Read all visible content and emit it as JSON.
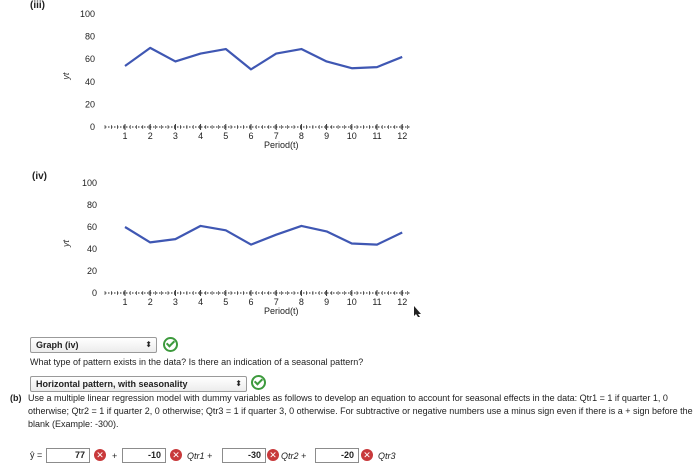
{
  "labels": {
    "part_iii": "(iii)",
    "part_iv": "(iv)"
  },
  "charts": {
    "xlabel": "Period(t)",
    "ylabel": "yt"
  },
  "chart_data": [
    {
      "type": "line",
      "name": "(iii)",
      "x": [
        1,
        2,
        3,
        4,
        5,
        6,
        7,
        8,
        9,
        10,
        11,
        12
      ],
      "y": [
        null,
        null,
        null,
        null,
        null,
        null,
        null,
        null,
        null,
        null,
        null,
        null
      ],
      "series": [
        {
          "x": [
            2,
            3,
            4,
            5,
            6,
            7,
            8,
            9,
            10,
            11,
            12
          ],
          "values": [
            null,
            null,
            null,
            null,
            null,
            null,
            null,
            null,
            null,
            null,
            null
          ]
        }
      ],
      "points": [
        [
          1,
          54
        ],
        [
          2,
          70
        ],
        [
          3,
          58
        ],
        [
          4,
          65
        ],
        [
          5,
          69
        ],
        [
          6,
          51
        ],
        [
          7,
          65
        ],
        [
          8,
          69
        ],
        [
          9,
          58
        ],
        [
          10,
          52
        ],
        [
          11,
          53
        ],
        [
          12,
          62
        ]
      ],
      "xlabel": "Period(t)",
      "ylabel": "yt",
      "xticks": [
        "1",
        "2",
        "3",
        "4",
        "5",
        "6",
        "7",
        "8",
        "9",
        "10",
        "11",
        "12"
      ],
      "yticks": [
        "0",
        "20",
        "40",
        "60",
        "80",
        "100"
      ],
      "ylim": [
        0,
        100
      ],
      "line_color": "#3f57b3"
    },
    {
      "type": "line",
      "name": "(iv)",
      "points": [
        [
          1,
          60
        ],
        [
          2,
          46
        ],
        [
          3,
          49
        ],
        [
          4,
          61
        ],
        [
          5,
          57
        ],
        [
          6,
          44
        ],
        [
          7,
          53
        ],
        [
          8,
          61
        ],
        [
          9,
          56
        ],
        [
          10,
          45
        ],
        [
          11,
          44
        ],
        [
          12,
          55
        ]
      ],
      "xlabel": "Period(t)",
      "ylabel": "yt",
      "xticks": [
        "1",
        "2",
        "3",
        "4",
        "5",
        "6",
        "7",
        "8",
        "9",
        "10",
        "11",
        "12"
      ],
      "yticks": [
        "0",
        "20",
        "40",
        "60",
        "80",
        "100"
      ],
      "ylim": [
        0,
        100
      ],
      "line_color": "#3f57b3"
    }
  ],
  "graph_select": {
    "value": "Graph (iv)",
    "caret": "⬍"
  },
  "question_text": "What type of pattern exists in the data? Is there an indication of a seasonal pattern?",
  "pattern_select": {
    "value": "Horizontal pattern, with seasonality",
    "caret": "⬍"
  },
  "part_b": {
    "label": "(b)",
    "text": "Use a multiple linear regression model with dummy variables as follows to develop an equation to account for seasonal effects in the data: Qtr1 = 1 if quarter 1, 0 otherwise; Qtr2 = 1 if quarter 2, 0 otherwise; Qtr3 = 1 if quarter 3, 0 otherwise. For subtractive or negative numbers use a minus sign even if there is a + sign before the blank (Example: -300)."
  },
  "equation": {
    "yhat": "ŷ =",
    "b0": "77",
    "plus1": "+",
    "b1": "-10",
    "term1": "Qtr1 +",
    "b2": "-30",
    "term2": "Qtr2 +",
    "b3": "-20",
    "term3": "Qtr3",
    "wrong_mark": "✕"
  }
}
